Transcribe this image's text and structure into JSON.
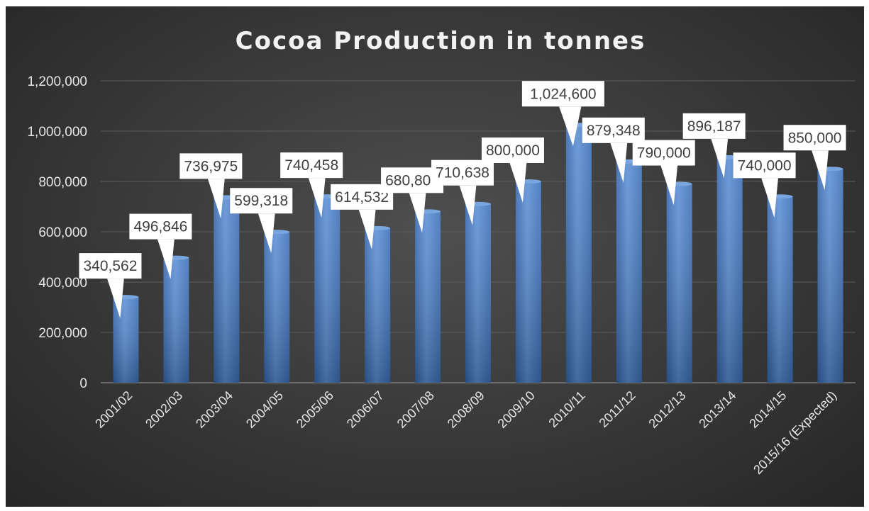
{
  "chart_data": {
    "type": "bar",
    "title": "Cocoa Production in tonnes",
    "xlabel": "",
    "ylabel": "",
    "ylim": [
      0,
      1200000
    ],
    "yticks": [
      0,
      200000,
      400000,
      600000,
      800000,
      1000000,
      1200000
    ],
    "ytick_labels": [
      "0",
      "200,000",
      "400,000",
      "600,000",
      "800,000",
      "1,000,000",
      "1,200,000"
    ],
    "grid": true,
    "legend": "none",
    "categories": [
      "2001/02",
      "2002/03",
      "2003/04",
      "2004/05",
      "2005/06",
      "2006/07",
      "2007/08",
      "2008/09",
      "2009/10",
      "2010/11",
      "2011/12",
      "2012/13",
      "2013/14",
      "2014/15",
      "2015/16 (Expected)"
    ],
    "values": [
      340562,
      496846,
      736975,
      599318,
      740458,
      614532,
      680800,
      710638,
      800000,
      1024600,
      879348,
      790000,
      896187,
      740000,
      850000
    ],
    "data_labels": [
      "340,562",
      "496,846",
      "736,975",
      "599,318",
      "740,458",
      "614,532",
      "680,800",
      "710,638",
      "800,000",
      "1,024,600",
      "879,348",
      "790,000",
      "896,187",
      "740,000",
      "850,000"
    ],
    "colors": {
      "bar": "#4a7fc8",
      "background": "#3c3c3c",
      "gridline": "#5c5c5c",
      "label_box": "#ffffff",
      "text": "#e6e6e6"
    }
  }
}
